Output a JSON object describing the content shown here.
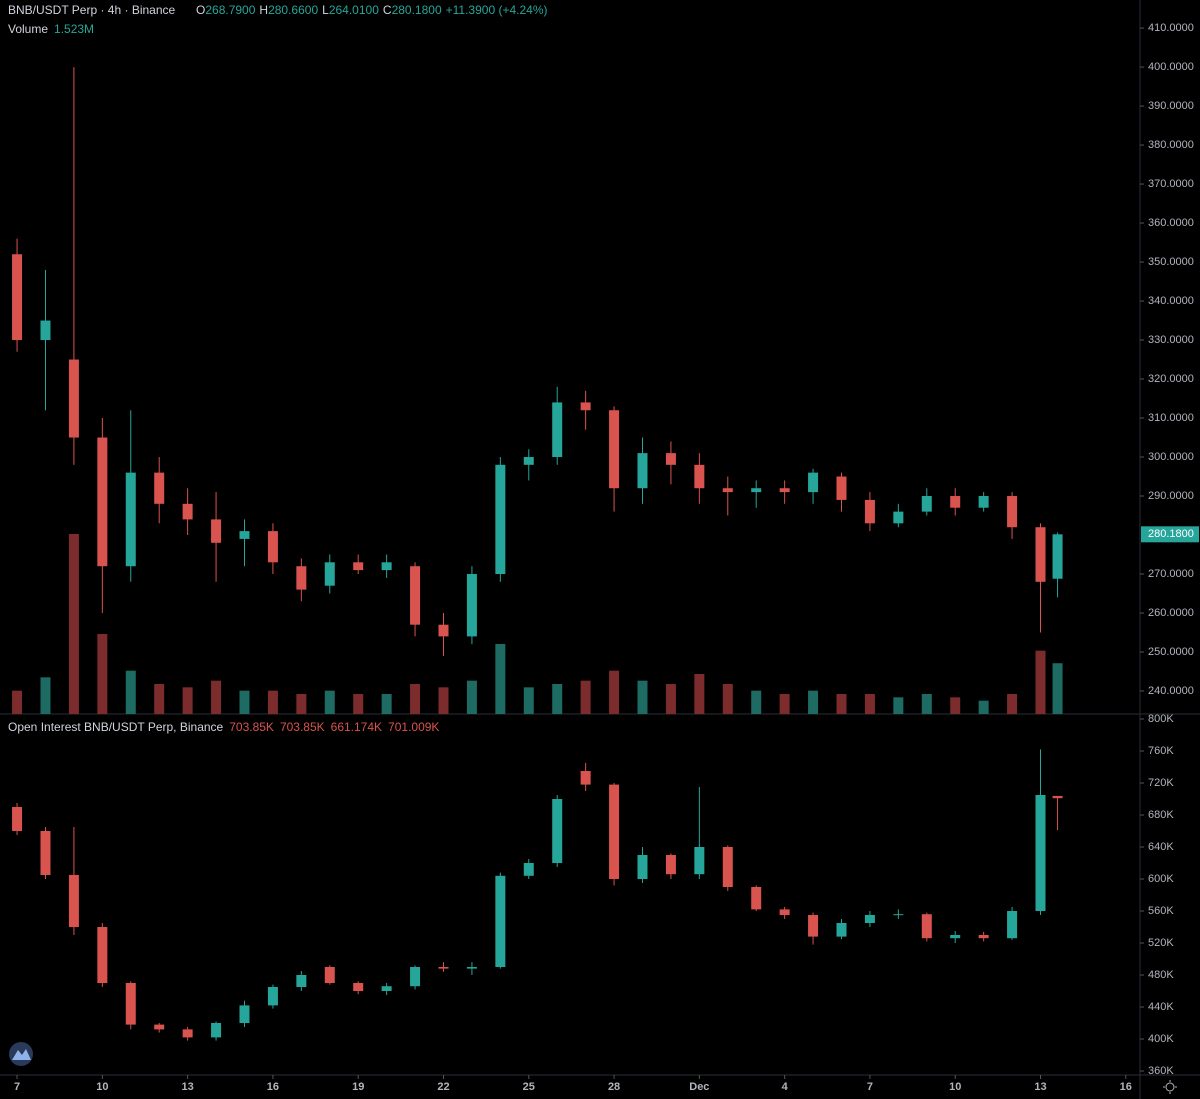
{
  "chart_data": [
    {
      "type": "candlestick",
      "title": "BNB/USDT Perp · 4h · Binance",
      "ohlc_letters": [
        "O",
        "H",
        "L",
        "C"
      ],
      "ohlc_labels": [
        "268.7900",
        "280.6600",
        "264.0100",
        "280.1800"
      ],
      "change_label": "+11.3900 (+4.24%)",
      "volume_title": "Volume",
      "volume_label": "1.523M",
      "last_price_label": "280.1800",
      "up_color": "#26a69a",
      "down_color": "#d9534f",
      "volume_up_color": "#1e6b63",
      "volume_down_color": "#7c2c2c",
      "x": [
        0,
        1,
        2,
        3,
        4,
        5,
        6,
        7,
        8,
        9,
        10,
        11,
        12,
        13,
        14,
        15,
        16,
        17,
        18,
        19,
        20,
        21,
        22,
        23,
        24,
        25,
        26,
        27,
        28,
        29,
        30,
        31,
        32,
        33,
        34,
        35,
        36,
        36.6
      ],
      "open": [
        352,
        330,
        325,
        305,
        272,
        296,
        288,
        284,
        279,
        281,
        272,
        267,
        273,
        271,
        272,
        257,
        254,
        270,
        298,
        300,
        314,
        312,
        292,
        301,
        298,
        292,
        291,
        292,
        291,
        295,
        289,
        283,
        286,
        290,
        287,
        290,
        282,
        268.79
      ],
      "high": [
        356,
        348,
        400,
        310,
        312,
        300,
        292,
        291,
        284,
        283,
        274,
        275,
        275,
        275,
        273,
        260,
        272,
        300,
        302,
        318,
        317,
        313,
        305,
        304,
        301,
        295,
        294,
        294,
        297,
        296,
        291,
        288,
        292,
        292,
        291,
        291,
        283,
        280.66
      ],
      "low": [
        327,
        312,
        298,
        260,
        268,
        283,
        280,
        268,
        272,
        270,
        263,
        265,
        270,
        269,
        254,
        249,
        252,
        268,
        294,
        298,
        307,
        286,
        288,
        293,
        288,
        285,
        287,
        288,
        288,
        286,
        281,
        282,
        285,
        285,
        286,
        279,
        255,
        264.01
      ],
      "close": [
        330,
        335,
        305,
        272,
        296,
        288,
        284,
        278,
        281,
        273,
        266,
        273,
        271,
        273,
        257,
        254,
        270,
        298,
        300,
        314,
        312,
        292,
        301,
        298,
        292,
        291,
        292,
        291,
        296,
        289,
        283,
        286,
        290,
        287,
        290,
        282,
        268,
        280.18
      ],
      "volume": [
        0.7,
        1.1,
        5.4,
        2.4,
        1.3,
        0.9,
        0.8,
        1.0,
        0.7,
        0.7,
        0.6,
        0.7,
        0.6,
        0.6,
        0.9,
        0.8,
        1.0,
        2.1,
        0.8,
        0.9,
        1.0,
        1.3,
        1.0,
        0.9,
        1.2,
        0.9,
        0.7,
        0.6,
        0.7,
        0.6,
        0.6,
        0.5,
        0.6,
        0.5,
        0.4,
        0.6,
        1.9,
        1.523
      ],
      "xlim": [
        -0.6,
        39.5
      ],
      "ylim": [
        234.1,
        417.2
      ],
      "yticks": [
        {
          "value": 240,
          "label": "240.0000"
        },
        {
          "value": 250,
          "label": "250.0000"
        },
        {
          "value": 260,
          "label": "260.0000"
        },
        {
          "value": 270,
          "label": "270.0000"
        },
        {
          "value": 290,
          "label": "290.0000"
        },
        {
          "value": 300,
          "label": "300.0000"
        },
        {
          "value": 310,
          "label": "310.0000"
        },
        {
          "value": 320,
          "label": "320.0000"
        },
        {
          "value": 330,
          "label": "330.0000"
        },
        {
          "value": 340,
          "label": "340.0000"
        },
        {
          "value": 350,
          "label": "350.0000"
        },
        {
          "value": 360,
          "label": "360.0000"
        },
        {
          "value": 370,
          "label": "370.0000"
        },
        {
          "value": 380,
          "label": "380.0000"
        },
        {
          "value": 390,
          "label": "390.0000"
        },
        {
          "value": 400,
          "label": "400.0000"
        },
        {
          "value": 410,
          "label": "410.0000"
        }
      ]
    },
    {
      "type": "candlestick",
      "title": "Open Interest BNB/USDT Perp, Binance",
      "ohlc_labels": [
        "703.85K",
        "703.85K",
        "661.174K",
        "701.009K"
      ],
      "up_color": "#26a69a",
      "down_color": "#d9534f",
      "x": [
        0,
        1,
        2,
        3,
        4,
        5,
        6,
        7,
        8,
        9,
        10,
        11,
        12,
        13,
        14,
        15,
        16,
        17,
        18,
        19,
        20,
        21,
        22,
        23,
        24,
        25,
        26,
        27,
        28,
        29,
        30,
        31,
        32,
        33,
        34,
        35,
        36,
        36.6
      ],
      "open": [
        690,
        660,
        605,
        540,
        470,
        418,
        412,
        402,
        420,
        442,
        465,
        490,
        470,
        460,
        466,
        490,
        488,
        490,
        604,
        620,
        735,
        718,
        600,
        630,
        606,
        640,
        590,
        562,
        555,
        528,
        545,
        555,
        556,
        526,
        530,
        526,
        560,
        703.85
      ],
      "high": [
        695,
        665,
        665,
        545,
        472,
        420,
        415,
        422,
        448,
        468,
        485,
        492,
        472,
        470,
        492,
        496,
        496,
        608,
        625,
        705,
        745,
        720,
        640,
        632,
        715,
        642,
        592,
        565,
        558,
        550,
        560,
        562,
        558,
        535,
        534,
        565,
        762,
        703.85
      ],
      "low": [
        655,
        600,
        530,
        465,
        412,
        408,
        398,
        398,
        415,
        438,
        460,
        468,
        456,
        455,
        462,
        484,
        480,
        488,
        600,
        615,
        710,
        592,
        595,
        600,
        600,
        585,
        560,
        550,
        518,
        525,
        540,
        550,
        522,
        520,
        522,
        524,
        555,
        661.174
      ],
      "close": [
        660,
        605,
        540,
        470,
        418,
        412,
        402,
        420,
        442,
        465,
        480,
        470,
        460,
        466,
        490,
        488,
        490,
        604,
        620,
        700,
        718,
        600,
        630,
        606,
        640,
        590,
        562,
        555,
        528,
        545,
        555,
        556,
        526,
        530,
        526,
        560,
        705,
        701.009
      ],
      "xlim": [
        -0.6,
        39.5
      ],
      "ylim": [
        355,
        806.25
      ],
      "yticks": [
        {
          "value": 360,
          "label": "360K"
        },
        {
          "value": 400,
          "label": "400K"
        },
        {
          "value": 440,
          "label": "440K"
        },
        {
          "value": 480,
          "label": "480K"
        },
        {
          "value": 520,
          "label": "520K"
        },
        {
          "value": 560,
          "label": "560K"
        },
        {
          "value": 600,
          "label": "600K"
        },
        {
          "value": 640,
          "label": "640K"
        },
        {
          "value": 680,
          "label": "680K"
        },
        {
          "value": 720,
          "label": "720K"
        },
        {
          "value": 760,
          "label": "760K"
        },
        {
          "value": 800,
          "label": "800K"
        }
      ],
      "xticks": [
        {
          "value": 0,
          "label": "7"
        },
        {
          "value": 3,
          "label": "10"
        },
        {
          "value": 6,
          "label": "13"
        },
        {
          "value": 9,
          "label": "16"
        },
        {
          "value": 12,
          "label": "19"
        },
        {
          "value": 15,
          "label": "22"
        },
        {
          "value": 18,
          "label": "25"
        },
        {
          "value": 21,
          "label": "28"
        },
        {
          "value": 24,
          "label": "Dec"
        },
        {
          "value": 27,
          "label": "4"
        },
        {
          "value": 30,
          "label": "7"
        },
        {
          "value": 33,
          "label": "10"
        },
        {
          "value": 36,
          "label": "13"
        },
        {
          "value": 39,
          "label": "16"
        }
      ]
    }
  ]
}
